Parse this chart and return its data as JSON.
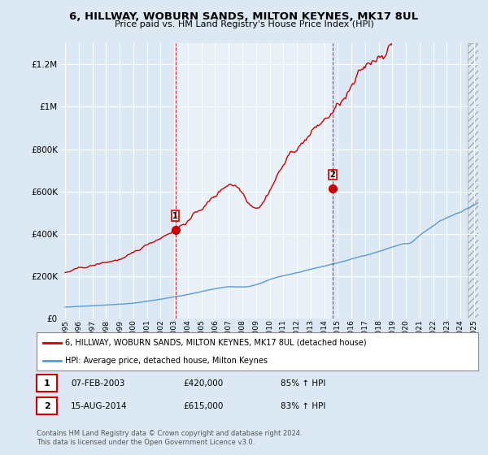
{
  "title": "6, HILLWAY, WOBURN SANDS, MILTON KEYNES, MK17 8UL",
  "subtitle": "Price paid vs. HM Land Registry's House Price Index (HPI)",
  "bg_color": "#dce9f5",
  "plot_bg_color": "#dce9f5",
  "shade_color": "#c8ddf0",
  "legend_label_red": "6, HILLWAY, WOBURN SANDS, MILTON KEYNES, MK17 8UL (detached house)",
  "legend_label_blue": "HPI: Average price, detached house, Milton Keynes",
  "sale1_label": "1",
  "sale1_date": "07-FEB-2003",
  "sale1_price": "£420,000",
  "sale1_hpi": "85% ↑ HPI",
  "sale2_label": "2",
  "sale2_date": "15-AUG-2014",
  "sale2_price": "£615,000",
  "sale2_hpi": "83% ↑ HPI",
  "footer": "Contains HM Land Registry data © Crown copyright and database right 2024.\nThis data is licensed under the Open Government Licence v3.0.",
  "red_color": "#cc0000",
  "blue_color": "#5b9bd5",
  "marker1_x": 2003.09,
  "marker1_y": 420000,
  "marker2_x": 2014.62,
  "marker2_y": 615000,
  "vline1_x": 2003.09,
  "vline2_x": 2014.62,
  "ylim": [
    0,
    1300000
  ],
  "xlim": [
    1994.7,
    2025.3
  ]
}
